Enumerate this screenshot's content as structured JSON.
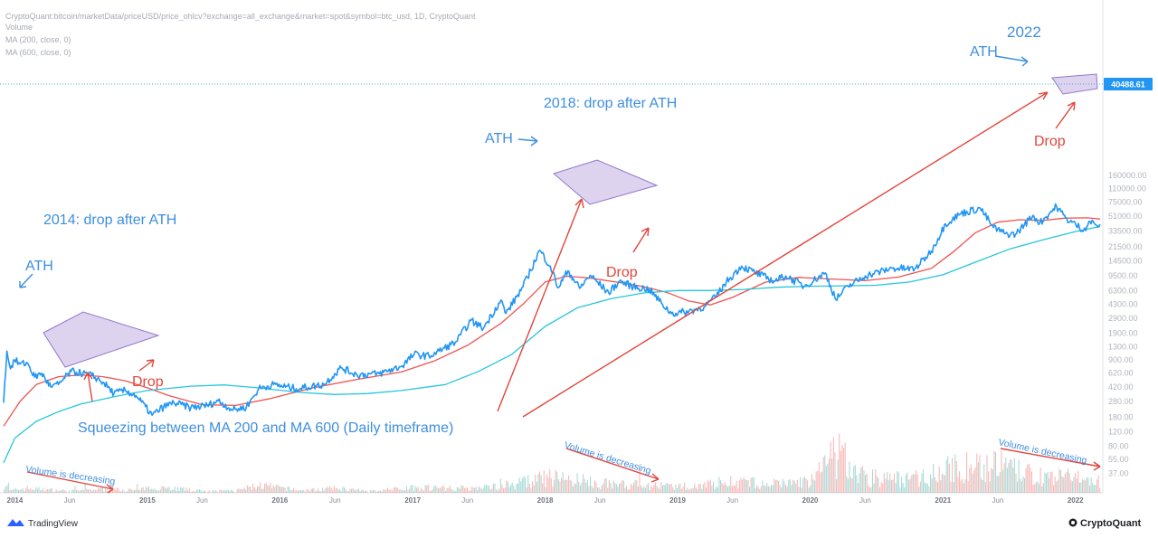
{
  "header": {
    "source_line": "CryptoQuant:bitcoin/marketData/priceUSD/price_ohlcv?exchange=all_exchange&market=spot&symbol=btc_usd, 1D, CryptoQuant",
    "legend": [
      "Volume",
      "MA (200, close, 0)",
      "MA (600, close, 0)"
    ]
  },
  "price_badge": "40488.61",
  "annotations": {
    "ath_2014": "ATH",
    "drop_after_2014": "2014: drop after ATH",
    "drop_2014": "Drop",
    "ath_2018": "ATH",
    "drop_after_2018": "2018: drop after ATH",
    "drop_2018": "Drop",
    "year_2022": "2022",
    "ath_2022": "ATH",
    "drop_2022": "Drop",
    "squeeze": "Squeezing between MA 200 and MA 600 (Daily timeframe)",
    "volume_1": "Volume is decreasing",
    "volume_2": "Volume is decreasing",
    "volume_3": "Volume is decreasing"
  },
  "footer": {
    "left_brand": "TradingView",
    "right_brand": "CryptoQuant"
  },
  "colors": {
    "price": "#2196f3",
    "ma200": "#ef5350",
    "ma600": "#26c6da",
    "wedge": "#b39ddb",
    "annotation_blue": "#3d8fe0",
    "annotation_red": "#e2453c"
  },
  "chart_data": {
    "type": "line",
    "y_scale": "log",
    "title": "",
    "xlabel": "",
    "ylabel": "",
    "x_ticks": [
      {
        "label": "2014",
        "date": "2014-01-01",
        "major": true
      },
      {
        "label": "Jun",
        "date": "2014-06-01",
        "major": false
      },
      {
        "label": "2015",
        "date": "2015-01-01",
        "major": true
      },
      {
        "label": "Jun",
        "date": "2015-06-01",
        "major": false
      },
      {
        "label": "2016",
        "date": "2016-01-01",
        "major": true
      },
      {
        "label": "Jun",
        "date": "2016-06-01",
        "major": false
      },
      {
        "label": "2017",
        "date": "2017-01-01",
        "major": true
      },
      {
        "label": "Jun",
        "date": "2017-06-01",
        "major": false
      },
      {
        "label": "2018",
        "date": "2018-01-01",
        "major": true
      },
      {
        "label": "Jun",
        "date": "2018-06-01",
        "major": false
      },
      {
        "label": "2019",
        "date": "2019-01-01",
        "major": true
      },
      {
        "label": "Jun",
        "date": "2019-06-01",
        "major": false
      },
      {
        "label": "2020",
        "date": "2020-01-01",
        "major": true
      },
      {
        "label": "Jun",
        "date": "2020-06-01",
        "major": false
      },
      {
        "label": "2021",
        "date": "2021-01-01",
        "major": true
      },
      {
        "label": "Jun",
        "date": "2021-06-01",
        "major": false
      },
      {
        "label": "2022",
        "date": "2022-01-01",
        "major": true
      }
    ],
    "y_ticks": [
      {
        "label": "160000.00",
        "value": 160000
      },
      {
        "label": "110000.00",
        "value": 110000
      },
      {
        "label": "75000.00",
        "value": 75000
      },
      {
        "label": "51000.00",
        "value": 51000
      },
      {
        "label": "33500.00",
        "value": 33500
      },
      {
        "label": "21500.00",
        "value": 21500
      },
      {
        "label": "14500.00",
        "value": 14500
      },
      {
        "label": "9500.00",
        "value": 9500
      },
      {
        "label": "6300.00",
        "value": 6300
      },
      {
        "label": "4300.00",
        "value": 4300
      },
      {
        "label": "2900.00",
        "value": 2900
      },
      {
        "label": "1900.00",
        "value": 1900
      },
      {
        "label": "1300.00",
        "value": 1300
      },
      {
        "label": "900.00",
        "value": 900
      },
      {
        "label": "620.00",
        "value": 620
      },
      {
        "label": "420.00",
        "value": 420
      },
      {
        "label": "280.00",
        "value": 280
      },
      {
        "label": "180.00",
        "value": 180
      },
      {
        "label": "120.00",
        "value": 120
      },
      {
        "label": "80.00",
        "value": 80
      },
      {
        "label": "55.00",
        "value": 55
      },
      {
        "label": "37.00",
        "value": 37
      }
    ],
    "last_price": 40488.61,
    "series": [
      {
        "name": "Volume",
        "color": "#26a69a",
        "points": [
          [
            "2013-12-15",
            0.05
          ],
          [
            "2014-02-01",
            0.12
          ],
          [
            "2014-04-01",
            0.08
          ],
          [
            "2014-06-01",
            0.05
          ],
          [
            "2014-09-01",
            0.1
          ],
          [
            "2014-12-01",
            0.07
          ],
          [
            "2015-02-01",
            0.15
          ],
          [
            "2015-06-01",
            0.05
          ],
          [
            "2015-09-01",
            0.06
          ],
          [
            "2015-11-01",
            0.2
          ],
          [
            "2016-03-01",
            0.06
          ],
          [
            "2016-06-01",
            0.12
          ],
          [
            "2016-09-01",
            0.04
          ],
          [
            "2017-01-01",
            0.15
          ],
          [
            "2017-06-01",
            0.12
          ],
          [
            "2017-09-01",
            0.18
          ],
          [
            "2017-12-15",
            0.35
          ],
          [
            "2018-02-01",
            0.4
          ],
          [
            "2018-06-01",
            0.25
          ],
          [
            "2018-10-01",
            0.2
          ],
          [
            "2019-01-01",
            0.15
          ],
          [
            "2019-06-01",
            0.3
          ],
          [
            "2019-09-01",
            0.22
          ],
          [
            "2020-01-01",
            0.3
          ],
          [
            "2020-03-15",
            1.0
          ],
          [
            "2020-06-01",
            0.4
          ],
          [
            "2020-10-01",
            0.35
          ],
          [
            "2021-01-15",
            0.6
          ],
          [
            "2021-05-20",
            0.75
          ],
          [
            "2021-09-01",
            0.45
          ],
          [
            "2021-12-01",
            0.4
          ],
          [
            "2022-02-01",
            0.35
          ],
          [
            "2022-03-10",
            0.25
          ]
        ]
      },
      {
        "name": "Price",
        "color": "#2196f3",
        "points": [
          [
            "2013-12-01",
            270
          ],
          [
            "2013-12-10",
            1150
          ],
          [
            "2013-12-20",
            700
          ],
          [
            "2013-12-31",
            900
          ],
          [
            "2014-01-15",
            800
          ],
          [
            "2014-02-05",
            820
          ],
          [
            "2014-02-25",
            550
          ],
          [
            "2014-03-15",
            620
          ],
          [
            "2014-04-10",
            420
          ],
          [
            "2014-05-01",
            450
          ],
          [
            "2014-06-05",
            650
          ],
          [
            "2014-07-01",
            620
          ],
          [
            "2014-08-01",
            580
          ],
          [
            "2014-09-01",
            480
          ],
          [
            "2014-10-01",
            350
          ],
          [
            "2014-11-01",
            380
          ],
          [
            "2014-12-01",
            330
          ],
          [
            "2015-01-14",
            190
          ],
          [
            "2015-02-15",
            240
          ],
          [
            "2015-03-15",
            270
          ],
          [
            "2015-05-01",
            235
          ],
          [
            "2015-06-15",
            250
          ],
          [
            "2015-07-15",
            285
          ],
          [
            "2015-08-25",
            220
          ],
          [
            "2015-10-01",
            240
          ],
          [
            "2015-11-04",
            400
          ],
          [
            "2015-12-15",
            450
          ],
          [
            "2016-02-15",
            400
          ],
          [
            "2016-05-01",
            450
          ],
          [
            "2016-06-18",
            720
          ],
          [
            "2016-08-01",
            590
          ],
          [
            "2016-10-01",
            610
          ],
          [
            "2016-12-01",
            750
          ],
          [
            "2017-01-05",
            1050
          ],
          [
            "2017-02-15",
            1000
          ],
          [
            "2017-03-15",
            1150
          ],
          [
            "2017-05-01",
            1500
          ],
          [
            "2017-06-10",
            2700
          ],
          [
            "2017-07-15",
            2200
          ],
          [
            "2017-09-01",
            4800
          ],
          [
            "2017-09-15",
            3300
          ],
          [
            "2017-11-01",
            7000
          ],
          [
            "2017-12-17",
            19500
          ],
          [
            "2018-01-15",
            12500
          ],
          [
            "2018-02-06",
            6800
          ],
          [
            "2018-03-05",
            11000
          ],
          [
            "2018-04-06",
            6700
          ],
          [
            "2018-05-05",
            9700
          ],
          [
            "2018-06-25",
            5900
          ],
          [
            "2018-07-25",
            8200
          ],
          [
            "2018-09-01",
            7000
          ],
          [
            "2018-10-15",
            6500
          ],
          [
            "2018-11-20",
            4300
          ],
          [
            "2018-12-15",
            3300
          ],
          [
            "2019-02-01",
            3500
          ],
          [
            "2019-03-15",
            4000
          ],
          [
            "2019-04-15",
            5200
          ],
          [
            "2019-05-15",
            8000
          ],
          [
            "2019-06-26",
            12500
          ],
          [
            "2019-08-01",
            10500
          ],
          [
            "2019-09-24",
            8200
          ],
          [
            "2019-10-26",
            9500
          ],
          [
            "2019-12-15",
            7100
          ],
          [
            "2020-02-12",
            10300
          ],
          [
            "2020-03-12",
            4900
          ],
          [
            "2020-04-15",
            7100
          ],
          [
            "2020-06-01",
            9500
          ],
          [
            "2020-08-15",
            11800
          ],
          [
            "2020-10-15",
            11500
          ],
          [
            "2020-11-30",
            19000
          ],
          [
            "2021-01-08",
            41000
          ],
          [
            "2021-02-20",
            55000
          ],
          [
            "2021-04-14",
            63500
          ],
          [
            "2021-05-20",
            37000
          ],
          [
            "2021-06-22",
            31000
          ],
          [
            "2021-07-20",
            30500
          ],
          [
            "2021-09-06",
            52000
          ],
          [
            "2021-09-25",
            42000
          ],
          [
            "2021-11-10",
            67000
          ],
          [
            "2021-12-05",
            48000
          ],
          [
            "2022-01-24",
            34500
          ],
          [
            "2022-02-10",
            44000
          ],
          [
            "2022-03-01",
            39000
          ],
          [
            "2022-03-10",
            40488.61
          ]
        ]
      },
      {
        "name": "MA (200, close, 0)",
        "color": "#ef5350",
        "points": [
          [
            "2013-12-01",
            140
          ],
          [
            "2014-01-15",
            280
          ],
          [
            "2014-03-01",
            450
          ],
          [
            "2014-05-01",
            560
          ],
          [
            "2014-07-01",
            590
          ],
          [
            "2014-09-01",
            560
          ],
          [
            "2014-11-01",
            500
          ],
          [
            "2015-01-01",
            410
          ],
          [
            "2015-03-01",
            330
          ],
          [
            "2015-06-01",
            255
          ],
          [
            "2015-09-01",
            250
          ],
          [
            "2015-12-01",
            300
          ],
          [
            "2016-04-01",
            410
          ],
          [
            "2016-08-01",
            520
          ],
          [
            "2016-12-01",
            640
          ],
          [
            "2017-03-01",
            870
          ],
          [
            "2017-06-01",
            1350
          ],
          [
            "2017-09-01",
            2500
          ],
          [
            "2017-11-01",
            4300
          ],
          [
            "2018-01-01",
            8000
          ],
          [
            "2018-03-01",
            9400
          ],
          [
            "2018-05-01",
            9000
          ],
          [
            "2018-08-01",
            7800
          ],
          [
            "2018-10-01",
            7000
          ],
          [
            "2018-12-01",
            6000
          ],
          [
            "2019-02-01",
            4700
          ],
          [
            "2019-04-01",
            4200
          ],
          [
            "2019-06-01",
            5200
          ],
          [
            "2019-09-01",
            8000
          ],
          [
            "2019-12-01",
            9100
          ],
          [
            "2020-03-01",
            8700
          ],
          [
            "2020-06-01",
            8300
          ],
          [
            "2020-09-01",
            9200
          ],
          [
            "2020-12-01",
            11800
          ],
          [
            "2021-02-01",
            19000
          ],
          [
            "2021-04-01",
            32000
          ],
          [
            "2021-06-01",
            43000
          ],
          [
            "2021-08-01",
            46000
          ],
          [
            "2021-10-01",
            45000
          ],
          [
            "2021-12-01",
            48000
          ],
          [
            "2022-02-01",
            48500
          ],
          [
            "2022-03-10",
            47000
          ]
        ]
      },
      {
        "name": "MA (600, close, 0)",
        "color": "#26c6da",
        "points": [
          [
            "2013-12-01",
            50
          ],
          [
            "2014-01-01",
            100
          ],
          [
            "2014-03-01",
            160
          ],
          [
            "2014-05-01",
            210
          ],
          [
            "2014-07-01",
            260
          ],
          [
            "2014-10-01",
            320
          ],
          [
            "2015-01-01",
            380
          ],
          [
            "2015-05-01",
            430
          ],
          [
            "2015-08-01",
            445
          ],
          [
            "2015-11-01",
            410
          ],
          [
            "2016-03-01",
            360
          ],
          [
            "2016-06-01",
            340
          ],
          [
            "2016-09-01",
            350
          ],
          [
            "2016-12-01",
            380
          ],
          [
            "2017-04-01",
            450
          ],
          [
            "2017-07-01",
            650
          ],
          [
            "2017-10-01",
            1050
          ],
          [
            "2018-01-01",
            2300
          ],
          [
            "2018-04-01",
            3900
          ],
          [
            "2018-07-01",
            5000
          ],
          [
            "2018-10-01",
            5900
          ],
          [
            "2019-01-01",
            6300
          ],
          [
            "2019-04-01",
            6300
          ],
          [
            "2019-07-01",
            6500
          ],
          [
            "2019-10-01",
            6900
          ],
          [
            "2020-01-01",
            7100
          ],
          [
            "2020-04-01",
            7200
          ],
          [
            "2020-07-01",
            7300
          ],
          [
            "2020-10-01",
            8000
          ],
          [
            "2021-01-01",
            9800
          ],
          [
            "2021-04-01",
            14000
          ],
          [
            "2021-07-01",
            20000
          ],
          [
            "2021-10-01",
            26000
          ],
          [
            "2022-01-01",
            33000
          ],
          [
            "2022-03-10",
            38000
          ]
        ]
      }
    ]
  }
}
